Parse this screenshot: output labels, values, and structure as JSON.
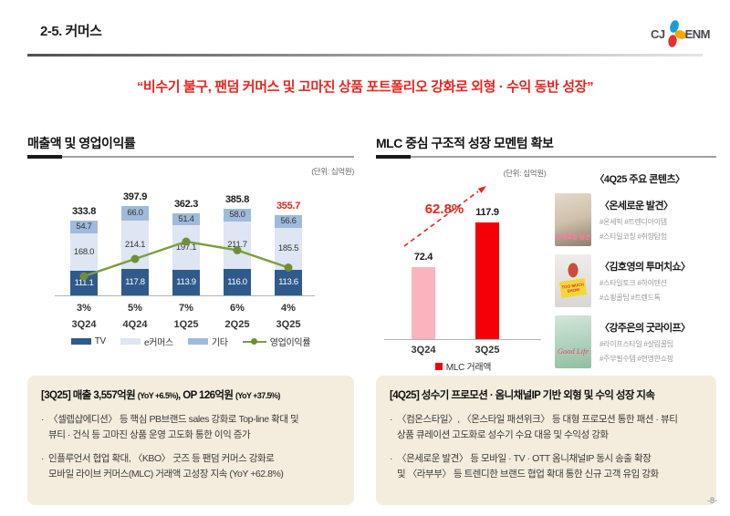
{
  "header": {
    "section_title": "2-5. 커머스",
    "logo_cj": "CJ",
    "logo_enm": "ENM"
  },
  "headline": "“비수기 불구, 팬덤 커머스 및 고마진 상품 포트폴리오 강화로 외형 · 수익 동반 성장”",
  "page_number": "-8-",
  "chart_data": [
    {
      "type": "bar",
      "variant": "stacked-bars-with-line",
      "title": "매출액 및 영업이익률",
      "unit_label": "(단위: 십억원)",
      "categories": [
        "3Q24",
        "4Q24",
        "1Q25",
        "2Q25",
        "3Q25"
      ],
      "series": [
        {
          "name": "TV",
          "color": "#2f5b8c",
          "label_color": "#ffffff",
          "values": [
            111.1,
            117.8,
            113.9,
            116.0,
            113.6
          ]
        },
        {
          "name": "e커머스",
          "color": "#dde6f2",
          "label_color": "#333333",
          "values": [
            168.0,
            214.1,
            197.1,
            211.7,
            185.5
          ]
        },
        {
          "name": "기타",
          "color": "#9fbbdb",
          "label_color": "#333333",
          "values": [
            54.7,
            66.0,
            51.4,
            58.0,
            56.6
          ]
        }
      ],
      "totals": [
        333.8,
        397.9,
        362.3,
        385.8,
        355.7
      ],
      "total_colors": [
        "#1a1a1a",
        "#1a1a1a",
        "#1a1a1a",
        "#1a1a1a",
        "#e8251f"
      ],
      "line": {
        "name": "영업이익률",
        "color": "#7e9e40",
        "marker_color": "#6f8f36",
        "values_pct": [
          3,
          5,
          7,
          6,
          4
        ],
        "labels": [
          "3%",
          "5%",
          "7%",
          "6%",
          "4%"
        ]
      }
    },
    {
      "type": "bar",
      "title": "MLC 중심 구조적 성장 모멘텀 확보",
      "unit_label": "(단위: 십억원)",
      "categories": [
        "3Q24",
        "3Q25"
      ],
      "values": [
        72.4,
        117.9
      ],
      "colors": [
        "#fbb4be",
        "#f40009"
      ],
      "growth_label": "62.8%",
      "legend": "MLC 거래액",
      "legend_color": "#f40009"
    }
  ],
  "contents": {
    "header": "〈4Q25 주요 콘텐츠〉",
    "items": [
      {
        "title": "〈온세로운 발견〉",
        "tags": [
          "#온세픽 #트렌디아이템",
          "#스타일코칭  #취향탐험"
        ],
        "thumb_text": "온세로운 발견"
      },
      {
        "title": "〈김호영의 투머치쇼〉",
        "tags": [
          "#스타일토크 #하이텐션",
          "#쇼핑꿀팁 #트렌드톡"
        ],
        "thumb_text": "TOO MUCH SHOW"
      },
      {
        "title": "〈강주은의 굿라이프〉",
        "tags": [
          "#라이프스타일 #살림꿀팁",
          "#주부필수템 #현명한쇼핑"
        ],
        "thumb_text": "Good Life"
      }
    ]
  },
  "boxes": [
    {
      "title_segments": [
        {
          "text": "[3Q25]  매출 3,557억원 ",
          "small": false
        },
        {
          "text": "(YoY +6.5%)",
          "small": true
        },
        {
          "text": ", OP 126억원 ",
          "small": false
        },
        {
          "text": "(YoY +37.5%)",
          "small": true
        }
      ],
      "bullets": [
        "〈셀렙샵에디션〉 등 핵심 PB브랜드 sales 강화로 Top-line 확대 및\n뷰티 · 건식 등 고마진 상품 운영 고도화 통한 이익 증가",
        "인플루언서 협업 확대, 〈KBO〉 굿즈 등 팬덤 커머스 강화로\n모바일 라이브 커머스(MLC) 거래액 고성장 지속 (YoY +62.8%)"
      ]
    },
    {
      "title_segments": [
        {
          "text": "[4Q25] 성수기 프로모션 · 옴니채널IP 기반 외형 및 수익 성장 지속",
          "small": false
        }
      ],
      "bullets": [
        "〈컴온스타일〉, 〈온스타일 패션위크〉 등 대형 프로모션 통한 패션 · 뷰티\n상품 큐레이션 고도화로 성수기 수요 대응 및 수익성 강화",
        "〈은세로운 발견〉 등 모바일 · TV · OTT 옴니채널IP 동시 송출 확장\n및 〈라부부〉 등 트렌디한 브랜드 협업 확대 통한 신규 고객 유입 강화"
      ]
    }
  ]
}
